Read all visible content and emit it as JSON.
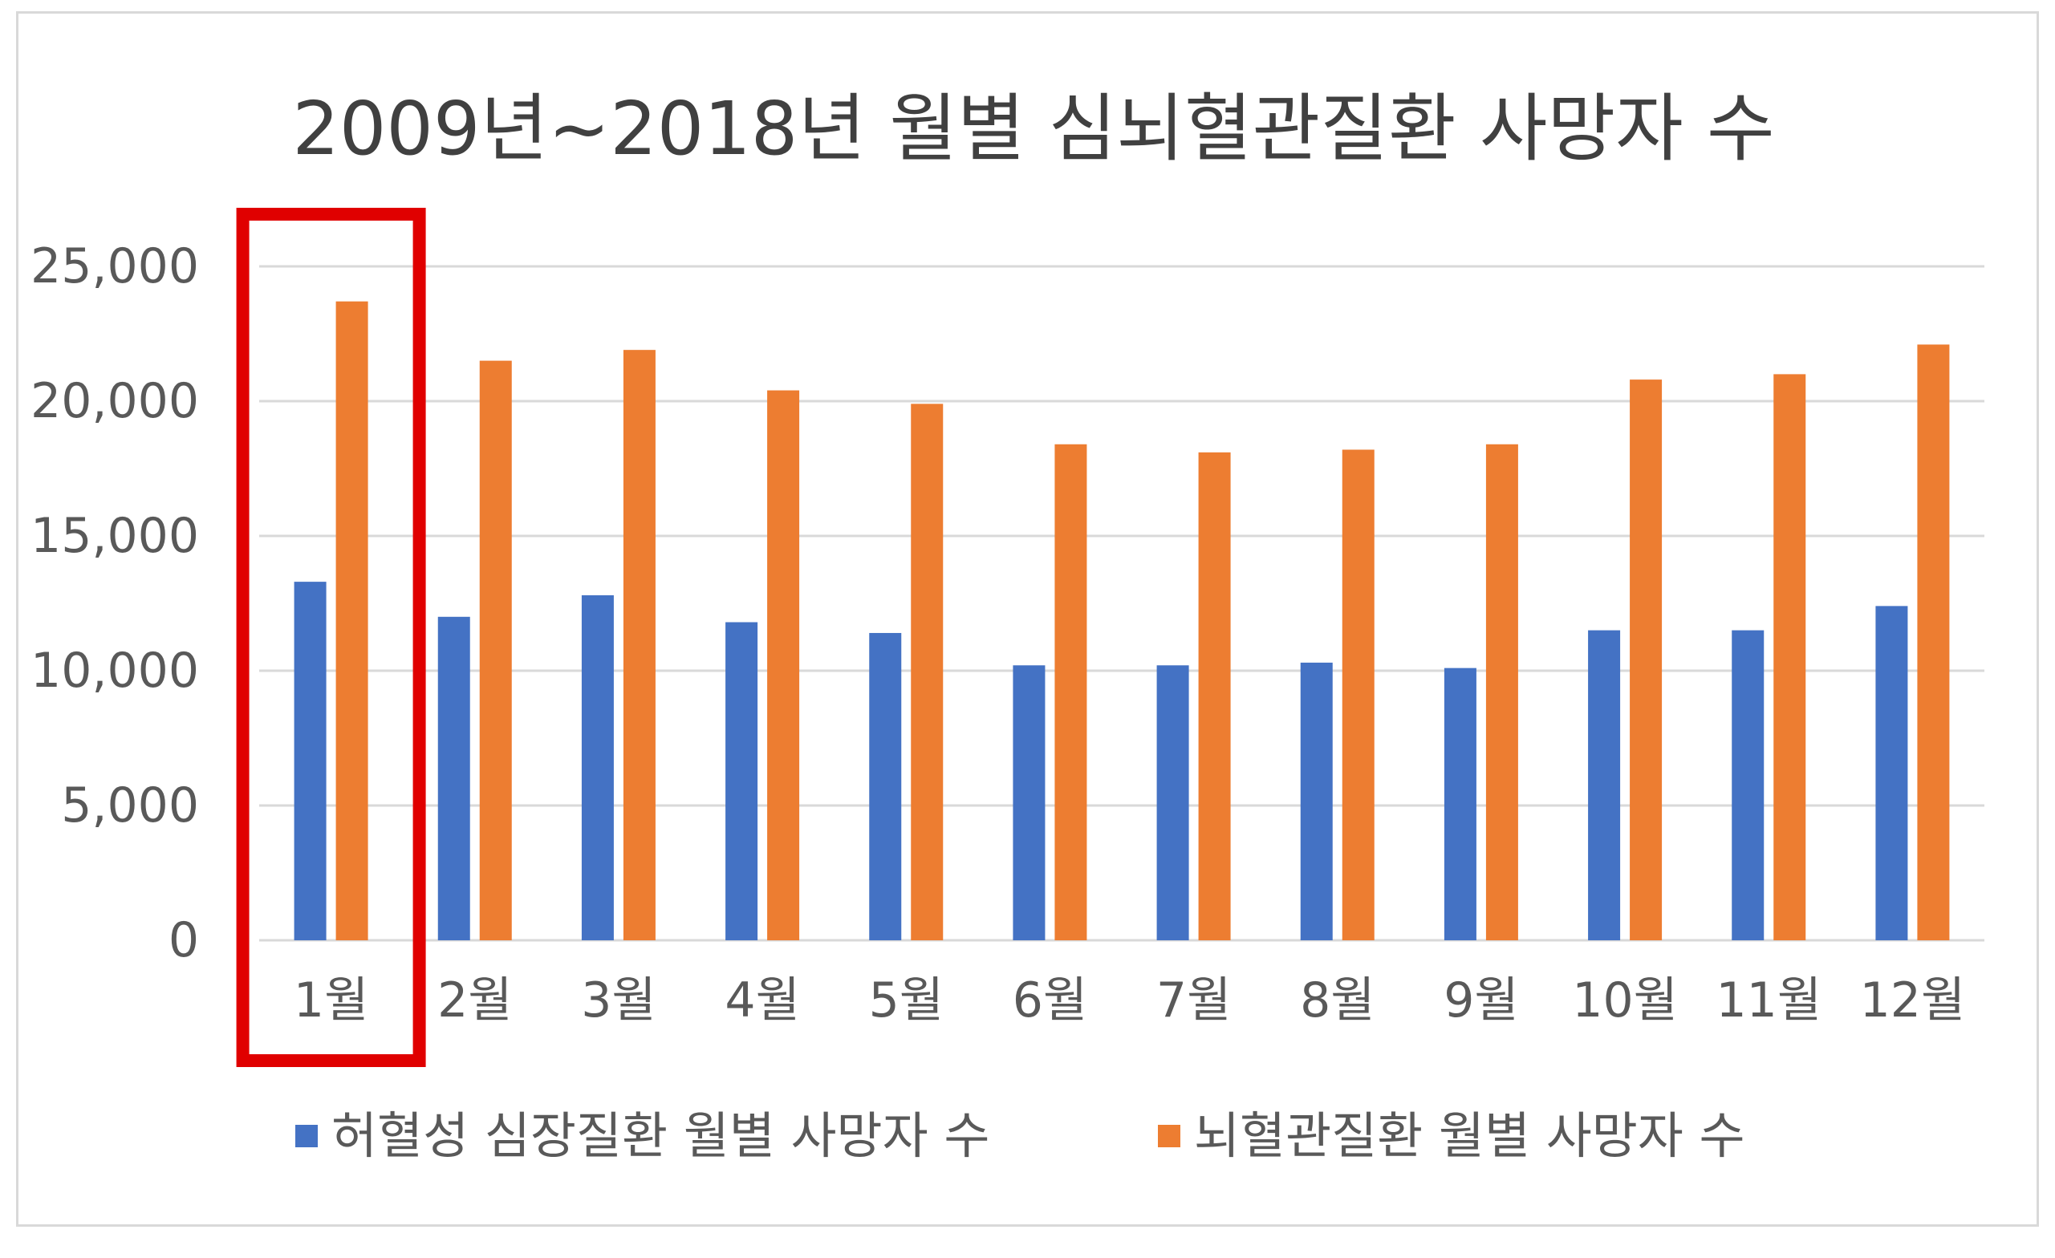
{
  "chart_data": {
    "type": "bar",
    "title": "2009년~2018년 월별 심뇌혈관질환 사망자 수",
    "categories": [
      "1월",
      "2월",
      "3월",
      "4월",
      "5월",
      "6월",
      "7월",
      "8월",
      "9월",
      "10월",
      "11월",
      "12월"
    ],
    "series": [
      {
        "name": "허혈성 심장질환 월별 사망자 수",
        "color": "#4472C4",
        "values": [
          13300,
          12000,
          12800,
          11800,
          11400,
          10200,
          10200,
          10300,
          10100,
          11500,
          11500,
          12400
        ]
      },
      {
        "name": "뇌혈관질환 월별 사망자 수",
        "color": "#ED7D31",
        "values": [
          23700,
          21500,
          21900,
          20400,
          19900,
          18400,
          18100,
          18200,
          18400,
          20800,
          21000,
          22100
        ]
      }
    ],
    "ylim": [
      0,
      25000
    ],
    "yticks": [
      "0",
      "5,000",
      "10,000",
      "15,000",
      "20,000",
      "25,000"
    ],
    "grid": true,
    "legend": "bottom",
    "highlight": {
      "category": "1월",
      "color": "#E00000"
    }
  }
}
